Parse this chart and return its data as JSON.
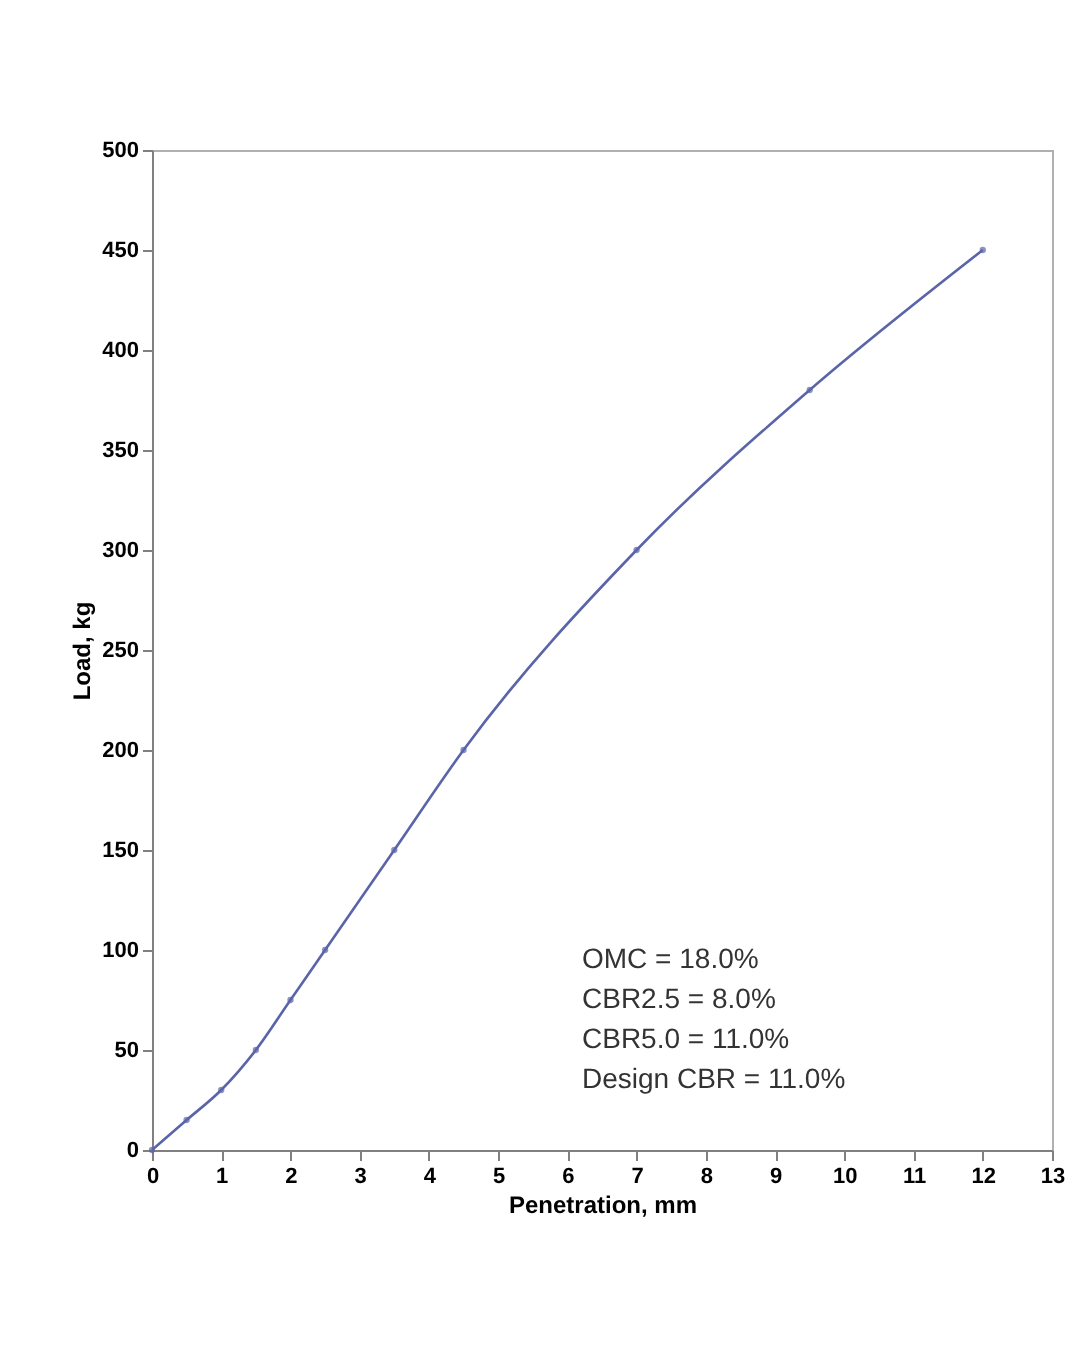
{
  "chart_data": {
    "type": "line",
    "xlabel": "Penetration, mm",
    "ylabel": "Load, kg",
    "x": [
      0,
      0.5,
      1,
      1.5,
      2,
      2.5,
      3.5,
      4.5,
      7,
      9.5,
      12
    ],
    "series": [
      {
        "color": "#5a64a8",
        "values": [
          0,
          15,
          30,
          50,
          75,
          100,
          150,
          200,
          300,
          380,
          450
        ]
      }
    ],
    "xlim": [
      0,
      13
    ],
    "xticks": [
      0,
      1,
      2,
      3,
      4,
      5,
      6,
      7,
      8,
      9,
      10,
      11,
      12,
      13
    ],
    "ylim": [
      0,
      500
    ],
    "yticks": [
      0,
      50,
      100,
      150,
      200,
      250,
      300,
      350,
      400,
      450,
      500
    ],
    "grid": false,
    "marker": "circle",
    "line_style": "solid",
    "annotations": [
      "OMC = 18.0%",
      "CBR2.5 = 8.0%",
      "CBR5.0 = 11.0%",
      "Design CBR = 11.0%"
    ]
  }
}
